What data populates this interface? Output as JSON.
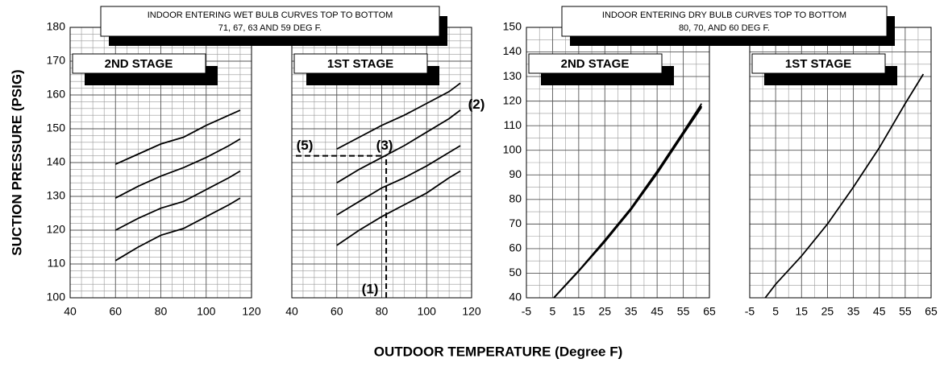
{
  "y_axis_label": "SUCTION PRESSURE (PSIG)",
  "x_axis_label": "OUTDOOR TEMPERATURE (Degree F)",
  "group_titles": [
    [
      "INDOOR ENTERING WET BULB CURVES TOP TO BOTTOM",
      "71, 67, 63 AND 59 DEG F."
    ],
    [
      "INDOOR ENTERING DRY BULB CURVES TOP TO BOTTOM",
      "80, 70, AND 60 DEG F."
    ]
  ],
  "chart_data": [
    {
      "type": "line",
      "title": "2ND STAGE",
      "x": [
        60,
        70,
        80,
        90,
        100,
        110,
        115
      ],
      "series": [
        {
          "color": "#000000",
          "values": [
            139.5,
            142.5,
            145.5,
            147.5,
            151,
            154,
            155.5
          ]
        },
        {
          "color": "#000000",
          "values": [
            129.5,
            133,
            136,
            138.5,
            141.5,
            145,
            147
          ]
        },
        {
          "color": "#000000",
          "values": [
            120,
            123.5,
            126.5,
            128.5,
            132,
            135.5,
            137.5
          ]
        },
        {
          "color": "#000000",
          "values": [
            111,
            115,
            118.5,
            120.5,
            124,
            127.5,
            129.5
          ]
        }
      ],
      "xlim": [
        40,
        120
      ],
      "xticks": [
        40,
        60,
        80,
        100,
        120
      ],
      "ylim": [
        100,
        180
      ],
      "yticks": [
        100,
        110,
        120,
        130,
        140,
        150,
        160,
        170,
        180
      ],
      "grid": true,
      "show_ytick_labels": true
    },
    {
      "type": "line",
      "title": "1ST STAGE",
      "x": [
        60,
        70,
        80,
        90,
        100,
        110,
        115
      ],
      "series": [
        {
          "color": "#000000",
          "values": [
            144,
            147.5,
            151,
            154,
            157.5,
            161,
            163.5
          ]
        },
        {
          "color": "#000000",
          "values": [
            134,
            138,
            141.5,
            145,
            149,
            153,
            155.5
          ]
        },
        {
          "color": "#000000",
          "values": [
            124.5,
            128.5,
            132.5,
            135.5,
            139,
            143,
            145
          ]
        },
        {
          "color": "#000000",
          "values": [
            115.5,
            120,
            124,
            127.5,
            131,
            135.5,
            137.5
          ]
        }
      ],
      "xlim": [
        40,
        120
      ],
      "xticks": [
        40,
        60,
        80,
        100,
        120
      ],
      "ylim": [
        100,
        180
      ],
      "yticks": [
        100,
        110,
        120,
        130,
        140,
        150,
        160,
        170,
        180
      ],
      "grid": true,
      "show_ytick_labels": false,
      "guide": {
        "x": 82,
        "y": 142
      },
      "annotations": [
        "(1)",
        "(2)",
        "(3)",
        "(5)"
      ]
    },
    {
      "type": "line",
      "title": "2ND STAGE",
      "x": [
        5.5,
        15,
        25,
        35,
        45,
        55,
        62
      ],
      "series": [
        {
          "color": "#000000",
          "values": [
            40,
            51,
            63.5,
            76.5,
            91.5,
            107.5,
            119
          ]
        },
        {
          "color": "#000000",
          "values": [
            40,
            51,
            63,
            76,
            91,
            107,
            118
          ]
        },
        {
          "color": "#000000",
          "values": [
            40,
            50.8,
            62.8,
            75.8,
            90.5,
            106.5,
            117.5
          ]
        }
      ],
      "xlim": [
        -5,
        65
      ],
      "xticks": [
        -5,
        5,
        15,
        25,
        35,
        45,
        55,
        65
      ],
      "ylim": [
        40,
        150
      ],
      "yticks": [
        40,
        50,
        60,
        70,
        80,
        90,
        100,
        110,
        120,
        130,
        140,
        150
      ],
      "grid": true,
      "show_ytick_labels": true
    },
    {
      "type": "line",
      "title": "1ST STAGE",
      "x": [
        1,
        5,
        15,
        25,
        35,
        45,
        55,
        62
      ],
      "series": [
        {
          "color": "#000000",
          "values": [
            40,
            45.5,
            57,
            70,
            85,
            101,
            119,
            131
          ]
        }
      ],
      "xlim": [
        -5,
        65
      ],
      "xticks": [
        -5,
        5,
        15,
        25,
        35,
        45,
        55,
        65
      ],
      "ylim": [
        40,
        150
      ],
      "yticks": [
        40,
        50,
        60,
        70,
        80,
        90,
        100,
        110,
        120,
        130,
        140,
        150
      ],
      "grid": true,
      "show_ytick_labels": false
    }
  ]
}
